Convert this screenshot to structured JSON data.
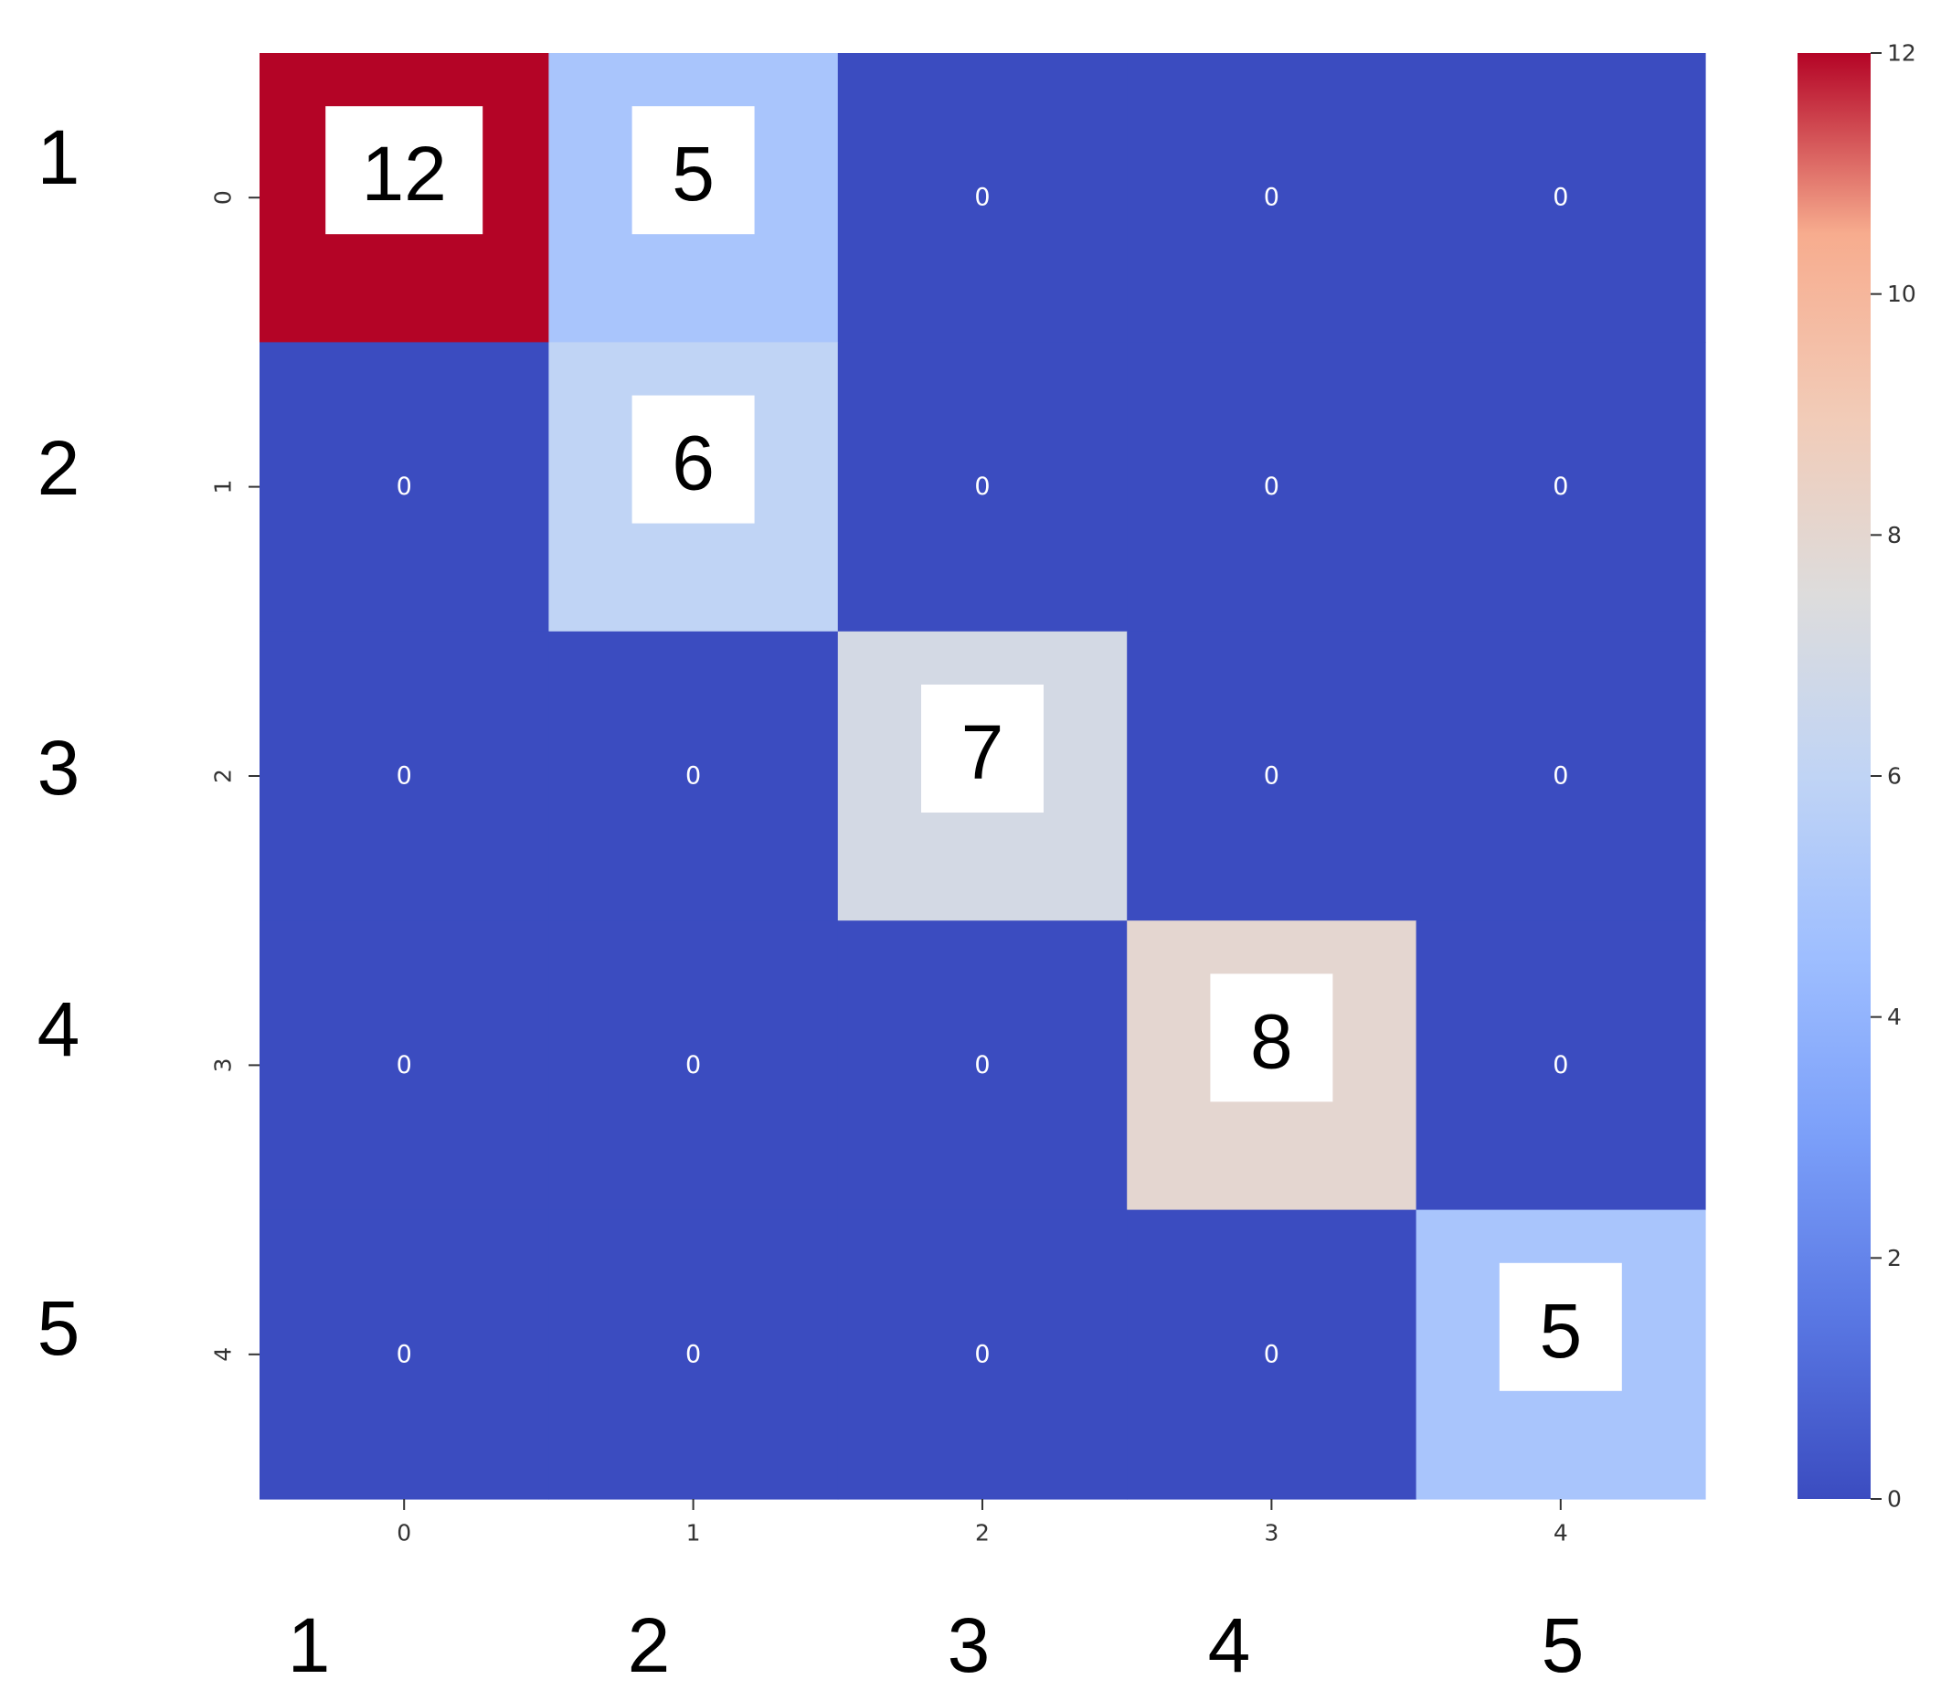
{
  "chart_data": {
    "type": "heatmap",
    "colormap": "coolwarm",
    "rows": [
      "0",
      "1",
      "2",
      "3",
      "4"
    ],
    "columns": [
      "0",
      "1",
      "2",
      "3",
      "4"
    ],
    "values": [
      [
        12,
        5,
        0,
        0,
        0
      ],
      [
        0,
        6,
        0,
        0,
        0
      ],
      [
        0,
        0,
        7,
        0,
        0
      ],
      [
        0,
        0,
        0,
        8,
        0
      ],
      [
        0,
        0,
        0,
        0,
        5
      ]
    ],
    "annotations": true,
    "highlighted_labels": [
      "12",
      "5",
      "6",
      "7",
      "8",
      "5"
    ],
    "colorbar": {
      "min": 0,
      "max": 12,
      "ticks": [
        0,
        2,
        4,
        6,
        8,
        10,
        12
      ],
      "placement": "right"
    },
    "outer_row_labels": [
      "1",
      "2",
      "3",
      "4",
      "5"
    ],
    "outer_column_labels": [
      "1",
      "2",
      "3",
      "4",
      "5"
    ]
  }
}
